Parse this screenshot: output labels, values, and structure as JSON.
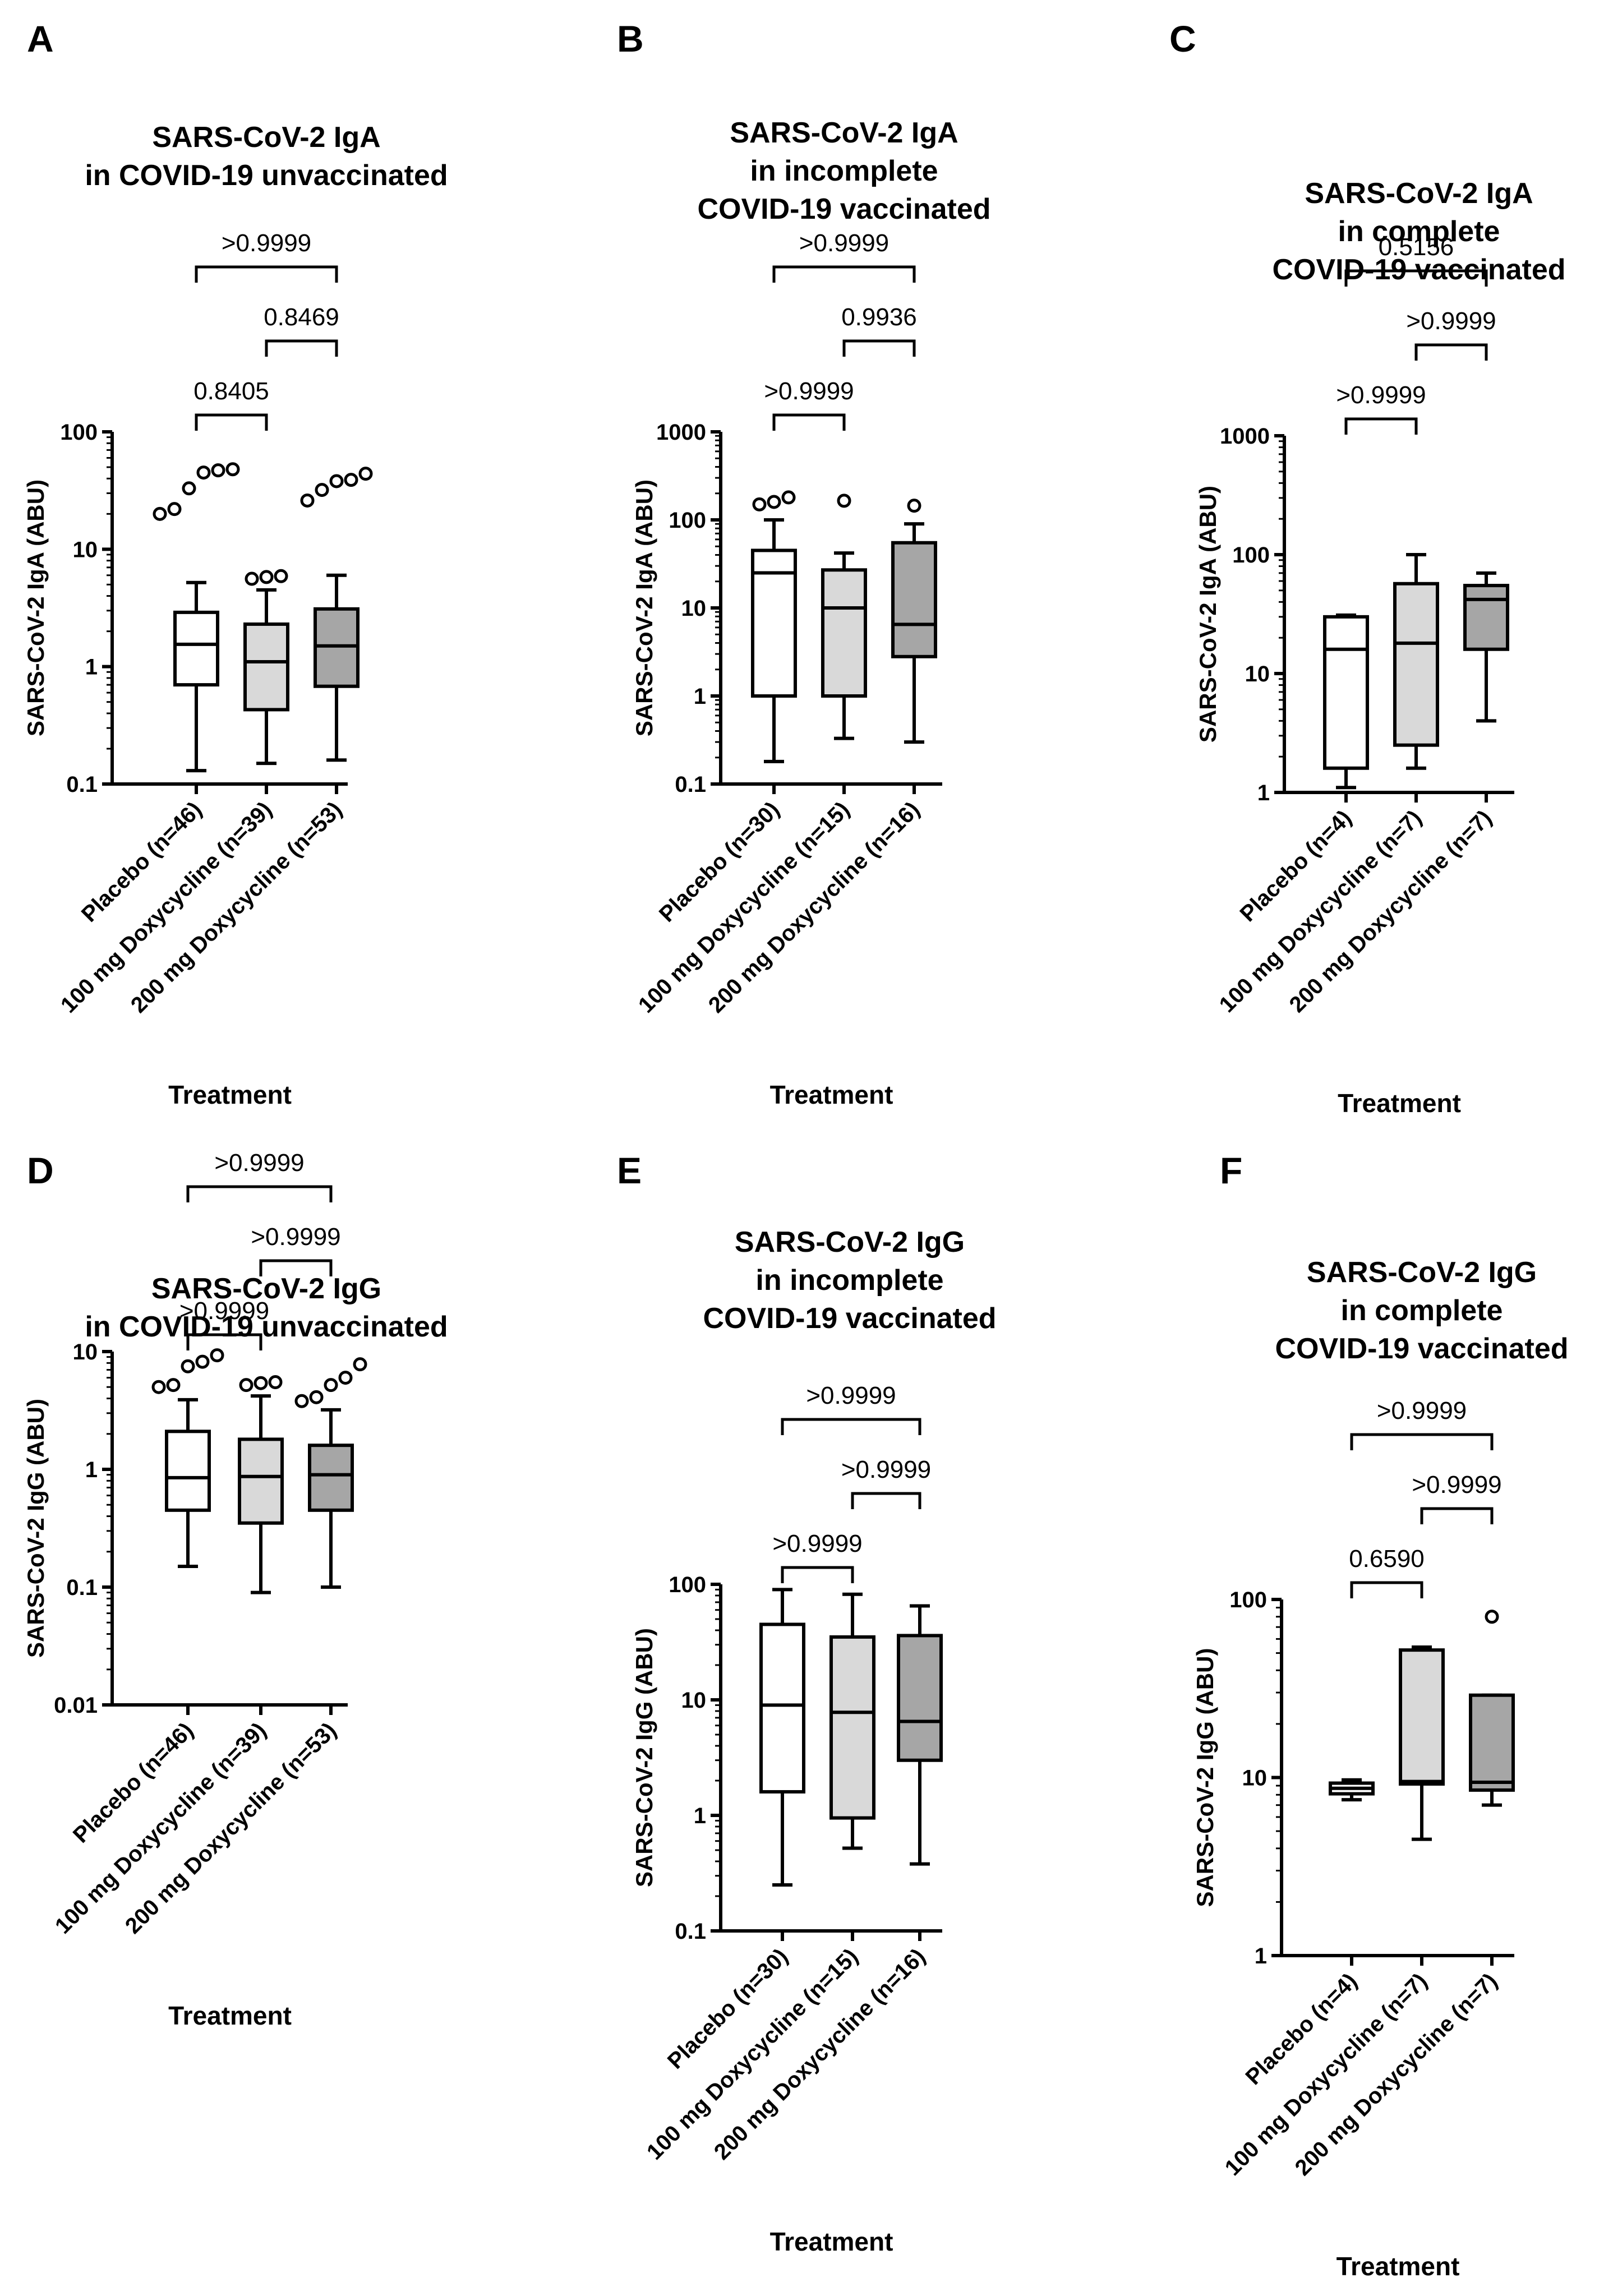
{
  "chart_data": [
    {
      "panel": "A",
      "type": "box",
      "title": [
        "SARS-CoV-2 IgA",
        "in COVID-19 unvaccinated"
      ],
      "ylabel": "SARS-CoV-2 IgA (ABU)",
      "xlabel": "Treatment",
      "yscale": "log",
      "ylim": [
        0.1,
        100
      ],
      "yticks": [
        {
          "value": 0.1,
          "label": "0.1"
        },
        {
          "value": 1,
          "label": "1"
        },
        {
          "value": 10,
          "label": "10"
        },
        {
          "value": 100,
          "label": "100"
        }
      ],
      "groups": [
        {
          "label": "Placebo (n=46)",
          "color": "#ffffff",
          "min": 0.13,
          "q1": 0.7,
          "median": 1.55,
          "q3": 2.9,
          "max": 5.2,
          "outliers": [
            20,
            22,
            33,
            45,
            47,
            48
          ]
        },
        {
          "label": "100 mg Doxycycline (n=39)",
          "color": "#d9d9d9",
          "min": 0.15,
          "q1": 0.43,
          "median": 1.1,
          "q3": 2.3,
          "max": 4.5,
          "outliers": [
            5.6,
            5.8,
            5.9
          ]
        },
        {
          "label": "200 mg Doxycycline (n=53)",
          "color": "#a6a6a6",
          "min": 0.16,
          "q1": 0.68,
          "median": 1.5,
          "q3": 3.1,
          "max": 6,
          "outliers": [
            26,
            32,
            38,
            39,
            44
          ]
        }
      ],
      "comparisons": [
        {
          "pair": [
            0,
            1
          ],
          "label": "0.8405",
          "level": 0
        },
        {
          "pair": [
            1,
            2
          ],
          "label": "0.8469",
          "level": 1
        },
        {
          "pair": [
            0,
            2
          ],
          "label": ">0.9999",
          "level": 2
        }
      ]
    },
    {
      "panel": "B",
      "type": "box",
      "title": [
        "SARS-CoV-2 IgA",
        "in incomplete",
        "COVID-19 vaccinated"
      ],
      "ylabel": "SARS-CoV-2 IgA (ABU)",
      "xlabel": "Treatment",
      "yscale": "log",
      "ylim": [
        0.1,
        1000
      ],
      "yticks": [
        {
          "value": 0.1,
          "label": "0.1"
        },
        {
          "value": 1,
          "label": "1"
        },
        {
          "value": 10,
          "label": "10"
        },
        {
          "value": 100,
          "label": "100"
        },
        {
          "value": 1000,
          "label": "1000"
        }
      ],
      "groups": [
        {
          "label": "Placebo (n=30)",
          "color": "#ffffff",
          "min": 0.18,
          "q1": 1,
          "median": 25,
          "q3": 45,
          "max": 100,
          "outliers": [
            150,
            160,
            180
          ]
        },
        {
          "label": "100 mg Doxycycline (n=15)",
          "color": "#d9d9d9",
          "min": 0.33,
          "q1": 1,
          "median": 10,
          "q3": 27,
          "max": 42,
          "outliers": [
            165
          ]
        },
        {
          "label": "200 mg Doxycycline (n=16)",
          "color": "#a6a6a6",
          "min": 0.3,
          "q1": 2.8,
          "median": 6.5,
          "q3": 55,
          "max": 90,
          "outliers": [
            145
          ]
        }
      ],
      "comparisons": [
        {
          "pair": [
            0,
            1
          ],
          "label": ">0.9999",
          "level": 0
        },
        {
          "pair": [
            1,
            2
          ],
          "label": "0.9936",
          "level": 1
        },
        {
          "pair": [
            0,
            2
          ],
          "label": ">0.9999",
          "level": 2
        }
      ]
    },
    {
      "panel": "C",
      "type": "box",
      "title": [
        "SARS-CoV-2 IgA",
        "in complete",
        "COVID-19 vaccinated"
      ],
      "ylabel": "SARS-CoV-2 IgA (ABU)",
      "xlabel": "Treatment",
      "yscale": "log",
      "ylim": [
        1,
        1000
      ],
      "yticks": [
        {
          "value": 1,
          "label": "1"
        },
        {
          "value": 10,
          "label": "10"
        },
        {
          "value": 100,
          "label": "100"
        },
        {
          "value": 1000,
          "label": "1000"
        }
      ],
      "groups": [
        {
          "label": "Placebo (n=4)",
          "color": "#ffffff",
          "min": 1.1,
          "q1": 1.6,
          "median": 16,
          "q3": 30,
          "max": 31,
          "outliers": []
        },
        {
          "label": "100 mg Doxycycline (n=7)",
          "color": "#d9d9d9",
          "min": 1.6,
          "q1": 2.5,
          "median": 18,
          "q3": 57,
          "max": 100,
          "outliers": []
        },
        {
          "label": "200 mg Doxycycline (n=7)",
          "color": "#a6a6a6",
          "min": 4,
          "q1": 16,
          "median": 42,
          "q3": 55,
          "max": 70,
          "outliers": []
        }
      ],
      "comparisons": [
        {
          "pair": [
            0,
            1
          ],
          "label": ">0.9999",
          "level": 0
        },
        {
          "pair": [
            1,
            2
          ],
          "label": ">0.9999",
          "level": 1
        },
        {
          "pair": [
            0,
            2
          ],
          "label": "0.5156",
          "level": 2
        }
      ]
    },
    {
      "panel": "D",
      "type": "box",
      "title": [
        "SARS-CoV-2 IgG",
        "in COVID-19 unvaccinated"
      ],
      "ylabel": "SARS-CoV-2 IgG (ABU)",
      "xlabel": "Treatment",
      "yscale": "log",
      "ylim": [
        0.01,
        10
      ],
      "yticks": [
        {
          "value": 0.01,
          "label": "0.01"
        },
        {
          "value": 0.1,
          "label": "0.1"
        },
        {
          "value": 1,
          "label": "1"
        },
        {
          "value": 10,
          "label": "10"
        }
      ],
      "groups": [
        {
          "label": "Placebo (n=46)",
          "color": "#ffffff",
          "min": 0.15,
          "q1": 0.45,
          "median": 0.85,
          "q3": 2.1,
          "max": 3.9,
          "outliers": [
            5,
            5.2,
            7.5,
            8.2,
            9.3
          ]
        },
        {
          "label": "100 mg Doxycycline (n=39)",
          "color": "#d9d9d9",
          "min": 0.09,
          "q1": 0.35,
          "median": 0.87,
          "q3": 1.8,
          "max": 4.2,
          "outliers": [
            5.2,
            5.4,
            5.5
          ]
        },
        {
          "label": "200 mg Doxycycline (n=53)",
          "color": "#a6a6a6",
          "min": 0.1,
          "q1": 0.45,
          "median": 0.9,
          "q3": 1.6,
          "max": 3.2,
          "outliers": [
            3.8,
            4.1,
            5.2,
            6,
            7.8
          ]
        }
      ],
      "comparisons": [
        {
          "pair": [
            0,
            1
          ],
          "label": ">0.9999",
          "level": 0
        },
        {
          "pair": [
            1,
            2
          ],
          "label": ">0.9999",
          "level": 1
        },
        {
          "pair": [
            0,
            2
          ],
          "label": ">0.9999",
          "level": 2
        }
      ]
    },
    {
      "panel": "E",
      "type": "box",
      "title": [
        "SARS-CoV-2 IgG",
        "in incomplete",
        "COVID-19 vaccinated"
      ],
      "ylabel": "SARS-CoV-2 IgG (ABU)",
      "xlabel": "Treatment",
      "yscale": "log",
      "ylim": [
        0.1,
        100
      ],
      "yticks": [
        {
          "value": 0.1,
          "label": "0.1"
        },
        {
          "value": 1,
          "label": "1"
        },
        {
          "value": 10,
          "label": "10"
        },
        {
          "value": 100,
          "label": "100"
        }
      ],
      "groups": [
        {
          "label": "Placebo (n=30)",
          "color": "#ffffff",
          "min": 0.25,
          "q1": 1.6,
          "median": 9,
          "q3": 45,
          "max": 90,
          "outliers": []
        },
        {
          "label": "100 mg Doxycycline (n=15)",
          "color": "#d9d9d9",
          "min": 0.52,
          "q1": 0.95,
          "median": 7.8,
          "q3": 35,
          "max": 82,
          "outliers": []
        },
        {
          "label": "200 mg Doxycycline (n=16)",
          "color": "#a6a6a6",
          "min": 0.38,
          "q1": 3,
          "median": 6.5,
          "q3": 36,
          "max": 65,
          "outliers": []
        }
      ],
      "comparisons": [
        {
          "pair": [
            0,
            1
          ],
          "label": ">0.9999",
          "level": 0
        },
        {
          "pair": [
            1,
            2
          ],
          "label": ">0.9999",
          "level": 1
        },
        {
          "pair": [
            0,
            2
          ],
          "label": ">0.9999",
          "level": 2
        }
      ]
    },
    {
      "panel": "F",
      "type": "box",
      "title": [
        "SARS-CoV-2 IgG",
        "in complete",
        "COVID-19 vaccinated"
      ],
      "ylabel": "SARS-CoV-2 IgG (ABU)",
      "xlabel": "Treatment",
      "yscale": "log",
      "ylim": [
        1,
        100
      ],
      "yticks": [
        {
          "value": 1,
          "label": "1"
        },
        {
          "value": 10,
          "label": "10"
        },
        {
          "value": 100,
          "label": "100"
        }
      ],
      "groups": [
        {
          "label": "Placebo (n=4)",
          "color": "#ffffff",
          "min": 7.5,
          "q1": 8.1,
          "median": 8.7,
          "q3": 9.3,
          "max": 9.7,
          "outliers": []
        },
        {
          "label": "100 mg Doxycycline (n=7)",
          "color": "#d9d9d9",
          "min": 4.5,
          "q1": 9.2,
          "median": 9.5,
          "q3": 52,
          "max": 54,
          "outliers": []
        },
        {
          "label": "200 mg Doxycycline (n=7)",
          "color": "#a6a6a6",
          "min": 7,
          "q1": 8.5,
          "median": 9.4,
          "q3": 29,
          "max": 29,
          "outliers": [
            80
          ]
        }
      ],
      "comparisons": [
        {
          "pair": [
            0,
            1
          ],
          "label": "0.6590",
          "level": 0
        },
        {
          "pair": [
            1,
            2
          ],
          "label": ">0.9999",
          "level": 1
        },
        {
          "pair": [
            0,
            2
          ],
          "label": ">0.9999",
          "level": 2
        }
      ]
    }
  ]
}
